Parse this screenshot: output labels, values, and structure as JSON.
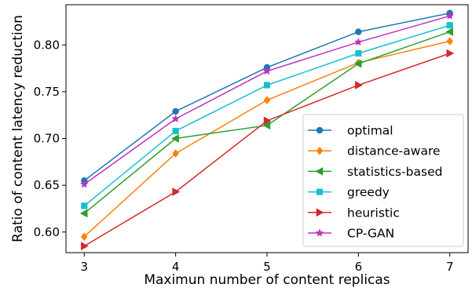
{
  "chart_data": {
    "type": "line",
    "title": "",
    "xlabel": "Maximun number of content replicas",
    "ylabel": "Ratio of content latency reduction",
    "x": [
      3,
      4,
      5,
      6,
      7
    ],
    "xlim": [
      2.8,
      7.2
    ],
    "ylim": [
      0.578,
      0.843
    ],
    "xticks": [
      "3",
      "4",
      "5",
      "6",
      "7"
    ],
    "yticks": [
      "0.60",
      "0.65",
      "0.70",
      "0.75",
      "0.80"
    ],
    "ytick_values": [
      0.6,
      0.65,
      0.7,
      0.75,
      0.8
    ],
    "grid": false,
    "legend_position": "lower-right",
    "series": [
      {
        "name": "optimal",
        "color": "#1f77b4",
        "marker": "circle",
        "values": [
          0.655,
          0.729,
          0.776,
          0.814,
          0.834
        ]
      },
      {
        "name": "distance-aware",
        "color": "#ff7f0e",
        "marker": "diamond",
        "values": [
          0.595,
          0.684,
          0.741,
          0.781,
          0.804
        ]
      },
      {
        "name": "statistics-based",
        "color": "#2ca02c",
        "marker": "triangle-left",
        "values": [
          0.62,
          0.7,
          0.714,
          0.78,
          0.814
        ]
      },
      {
        "name": "greedy",
        "color": "#17becf",
        "marker": "square",
        "values": [
          0.628,
          0.708,
          0.757,
          0.791,
          0.821
        ]
      },
      {
        "name": "heuristic",
        "color": "#d62728",
        "marker": "triangle-right",
        "values": [
          0.585,
          0.643,
          0.719,
          0.757,
          0.791
        ]
      },
      {
        "name": "CP-GAN",
        "color": "#bf2fbf",
        "marker": "star",
        "values": [
          0.651,
          0.721,
          0.772,
          0.803,
          0.831
        ]
      }
    ]
  }
}
